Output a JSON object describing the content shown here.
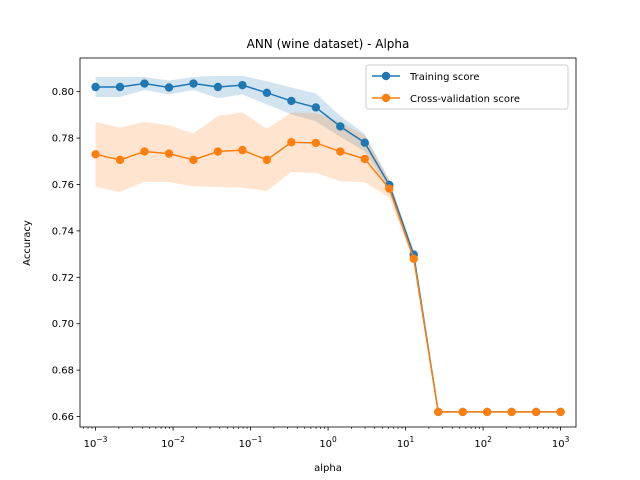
{
  "chart_data": {
    "type": "line",
    "title": "ANN (wine dataset) - Alpha",
    "xlabel": "alpha",
    "ylabel": "Accuracy",
    "xscale": "log",
    "xlim": [
      0.00063,
      1580
    ],
    "ylim": [
      0.6555,
      0.8145
    ],
    "x_ticks": [
      {
        "value": 0.001,
        "base": "10",
        "exp": "−3"
      },
      {
        "value": 0.01,
        "base": "10",
        "exp": "−2"
      },
      {
        "value": 0.1,
        "base": "10",
        "exp": "−1"
      },
      {
        "value": 1,
        "base": "10",
        "exp": "0"
      },
      {
        "value": 10,
        "base": "10",
        "exp": "1"
      },
      {
        "value": 100,
        "base": "10",
        "exp": "2"
      },
      {
        "value": 1000,
        "base": "10",
        "exp": "3"
      }
    ],
    "y_ticks": [
      "0.66",
      "0.68",
      "0.70",
      "0.72",
      "0.74",
      "0.76",
      "0.78",
      "0.80"
    ],
    "x": [
      0.001,
      0.00207,
      0.00428,
      0.00886,
      0.01833,
      0.03793,
      0.07848,
      0.16238,
      0.33598,
      0.69519,
      1.43845,
      2.97635,
      6.15848,
      12.74275,
      26.36651,
      54.55595,
      112.88379,
      233.57215,
      483.29302,
      1000
    ],
    "series": [
      {
        "name": "Training score",
        "color": "#1f77b4",
        "values": [
          0.802,
          0.802,
          0.8035,
          0.8018,
          0.8035,
          0.802,
          0.8028,
          0.7995,
          0.796,
          0.7932,
          0.785,
          0.778,
          0.7598,
          0.7298,
          0.662,
          0.662,
          0.662,
          0.662,
          0.662,
          0.662
        ],
        "upper": [
          0.8063,
          0.8063,
          0.8063,
          0.8048,
          0.8063,
          0.8068,
          0.8068,
          0.8045,
          0.8018,
          0.7992,
          0.7895,
          0.7818,
          0.762,
          0.7315,
          0.662,
          0.662,
          0.662,
          0.662,
          0.662,
          0.662
        ],
        "lower": [
          0.7977,
          0.7977,
          0.8007,
          0.7988,
          0.8007,
          0.7972,
          0.7988,
          0.7945,
          0.7902,
          0.7872,
          0.7805,
          0.7742,
          0.7576,
          0.7281,
          0.662,
          0.662,
          0.662,
          0.662,
          0.662,
          0.662
        ]
      },
      {
        "name": "Cross-validation score",
        "color": "#ff7f0e",
        "values": [
          0.773,
          0.7706,
          0.7742,
          0.7733,
          0.7706,
          0.7742,
          0.7748,
          0.7706,
          0.7782,
          0.7779,
          0.7742,
          0.771,
          0.7582,
          0.728,
          0.662,
          0.662,
          0.662,
          0.662,
          0.662,
          0.662
        ],
        "upper": [
          0.787,
          0.7845,
          0.787,
          0.7855,
          0.782,
          0.7895,
          0.791,
          0.784,
          0.791,
          0.7908,
          0.787,
          0.781,
          0.762,
          0.7293,
          0.662,
          0.662,
          0.662,
          0.662,
          0.662,
          0.662
        ],
        "lower": [
          0.759,
          0.7567,
          0.7612,
          0.761,
          0.7592,
          0.7589,
          0.7586,
          0.7572,
          0.7654,
          0.765,
          0.7614,
          0.761,
          0.7544,
          0.7267,
          0.662,
          0.662,
          0.662,
          0.662,
          0.662,
          0.662
        ]
      }
    ],
    "legend_position": "top-right",
    "grid": false
  }
}
